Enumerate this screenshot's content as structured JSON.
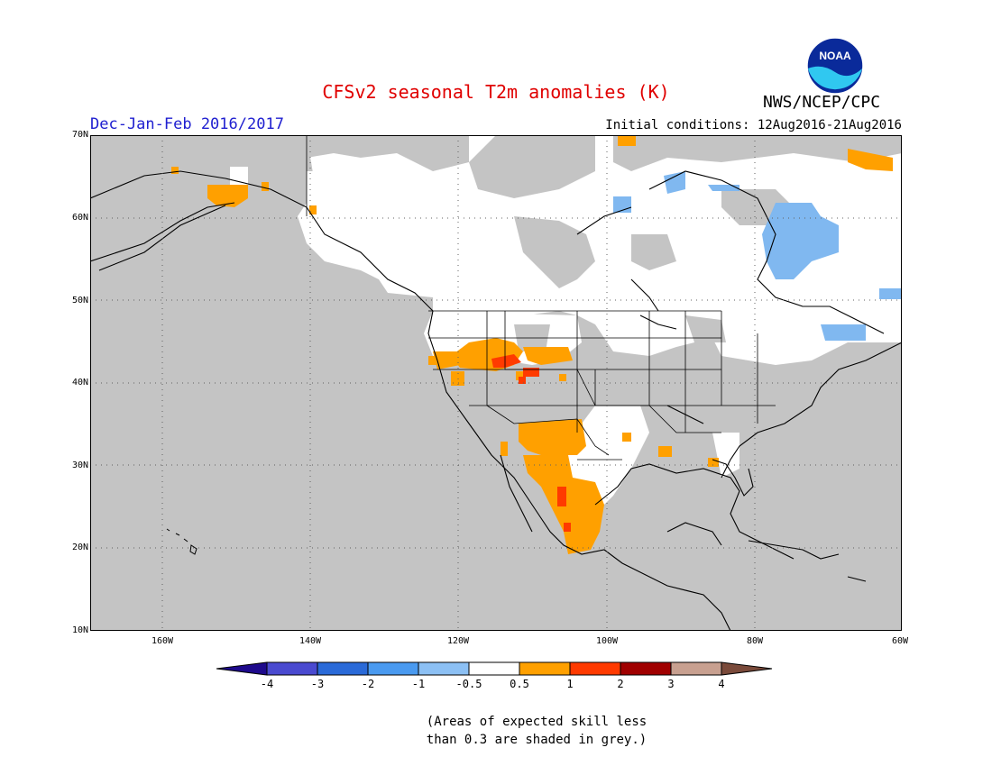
{
  "title": "CFSv2 seasonal T2m anomalies (K)",
  "season": "Dec-Jan-Feb 2016/2017",
  "init": "Initial conditions: 12Aug2016-21Aug2016",
  "agency": "NWS/NCEP/CPC",
  "logo_text": "NOAA",
  "lat_labels": [
    "70N",
    "60N",
    "50N",
    "40N",
    "30N",
    "20N",
    "10N"
  ],
  "lon_labels": [
    "160W",
    "140W",
    "120W",
    "100W",
    "80W",
    "60W"
  ],
  "legend": {
    "labels": [
      "-4",
      "-3",
      "-2",
      "-1",
      "-0.5",
      "0.5",
      "1",
      "2",
      "3",
      "4"
    ],
    "colors": [
      "#1e0a8c",
      "#4a4ad0",
      "#2a6ad8",
      "#4a9af0",
      "#8cc0f4",
      "#ffffff",
      "#ffa000",
      "#ff3a00",
      "#a00000",
      "#c8a090",
      "#7a4a3a"
    ]
  },
  "note_line1": "(Areas of expected skill less",
  "note_line2": "than 0.3 are shaded in grey.)",
  "colors": {
    "title": "#e00000",
    "season": "#2020d0",
    "grey": "#c4c4c4",
    "orange": "#ffa000",
    "red": "#ff3a00",
    "lightblue": "#80b8f0"
  }
}
